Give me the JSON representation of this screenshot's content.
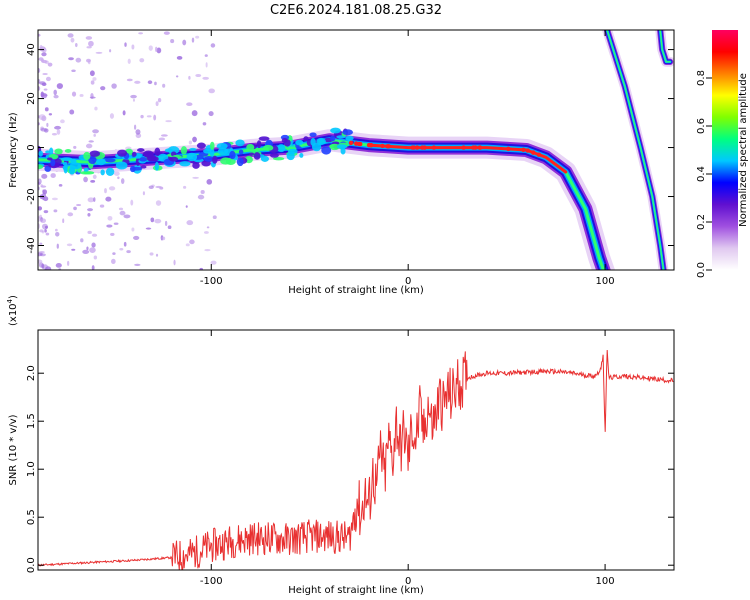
{
  "title": "C2E6.2024.181.08.25.G32",
  "chart_data": [
    {
      "type": "heatmap",
      "xlabel": "Height of straight line (km)",
      "ylabel": "Frequency (Hz)",
      "xlim": [
        -188,
        135
      ],
      "ylim": [
        -50,
        48
      ],
      "x_ticks": [
        -100,
        0,
        100
      ],
      "y_ticks": [
        -40,
        -20,
        0,
        20,
        40
      ],
      "colorbar": {
        "label": "Normalized spectral amplitude",
        "range": [
          0,
          1
        ],
        "ticks": [
          0.0,
          0.2,
          0.4,
          0.6,
          0.8
        ],
        "colors": [
          "#ffffff",
          "#e0c8f0",
          "#a050e0",
          "#6010d0",
          "#0000ff",
          "#00c8ff",
          "#00ff80",
          "#80ff00",
          "#ffff00",
          "#ff8000",
          "#ff0000",
          "#ff0060"
        ]
      },
      "main_trace": [
        [
          -188,
          -5
        ],
        [
          -160,
          -6
        ],
        [
          -140,
          -5
        ],
        [
          -120,
          -4
        ],
        [
          -100,
          -3
        ],
        [
          -80,
          -1
        ],
        [
          -60,
          0
        ],
        [
          -40,
          3
        ],
        [
          -30,
          2
        ],
        [
          -20,
          1
        ],
        [
          0,
          0
        ],
        [
          40,
          0
        ],
        [
          60,
          -1
        ],
        [
          70,
          -4
        ],
        [
          80,
          -10
        ],
        [
          90,
          -25
        ],
        [
          97,
          -45
        ],
        [
          100,
          -52
        ]
      ],
      "secondary_trace": [
        [
          101,
          48
        ],
        [
          110,
          25
        ],
        [
          118,
          0
        ],
        [
          124,
          -20
        ],
        [
          128,
          -40
        ],
        [
          130,
          -52
        ]
      ],
      "tertiary_trace": [
        [
          128,
          48
        ],
        [
          129,
          40
        ],
        [
          131,
          35
        ],
        [
          133,
          35
        ]
      ]
    },
    {
      "type": "line",
      "xlabel": "Height of straight line (km)",
      "ylabel": "SNR (10 * v/v)",
      "y_multiplier": "(x10",
      "y_exponent": "4",
      "xlim": [
        -188,
        135
      ],
      "ylim": [
        -0.05,
        2.45
      ],
      "x_ticks": [
        -100,
        0,
        100
      ],
      "y_ticks": [
        0.0,
        0.5,
        1.0,
        1.5,
        2.0
      ],
      "line_color": "#e83030",
      "series": [
        {
          "x": [
            -188,
            -160,
            -140,
            -120,
            -110,
            -100,
            -90,
            -80,
            -70,
            -60,
            -50,
            -40,
            -30,
            -28,
            -26,
            -24,
            -22,
            -20,
            -18,
            -16,
            -14,
            -12,
            -10,
            -8,
            -6,
            -4,
            -2,
            0,
            2,
            4,
            6,
            8,
            10,
            12,
            14,
            16,
            18,
            20,
            22,
            24,
            26,
            28,
            30,
            35,
            40,
            45,
            50,
            60,
            70,
            80,
            90,
            95,
            98,
            99,
            100,
            101,
            102,
            105,
            110,
            120,
            135
          ],
          "y": [
            0.0,
            0.03,
            0.05,
            0.08,
            0.12,
            0.2,
            0.25,
            0.28,
            0.28,
            0.27,
            0.3,
            0.3,
            0.28,
            0.45,
            0.7,
            0.5,
            0.75,
            0.6,
            0.95,
            0.8,
            1.2,
            0.9,
            1.3,
            1.1,
            1.5,
            1.2,
            1.4,
            1.1,
            1.45,
            1.3,
            1.6,
            1.35,
            1.7,
            1.45,
            1.55,
            1.75,
            1.65,
            1.8,
            1.75,
            1.85,
            1.9,
            1.92,
            1.95,
            1.98,
            2.0,
            2.0,
            2.0,
            2.01,
            2.02,
            2.01,
            1.98,
            1.97,
            2.05,
            2.2,
            1.35,
            2.25,
            1.95,
            1.96,
            1.97,
            1.95,
            1.92
          ]
        }
      ]
    }
  ]
}
